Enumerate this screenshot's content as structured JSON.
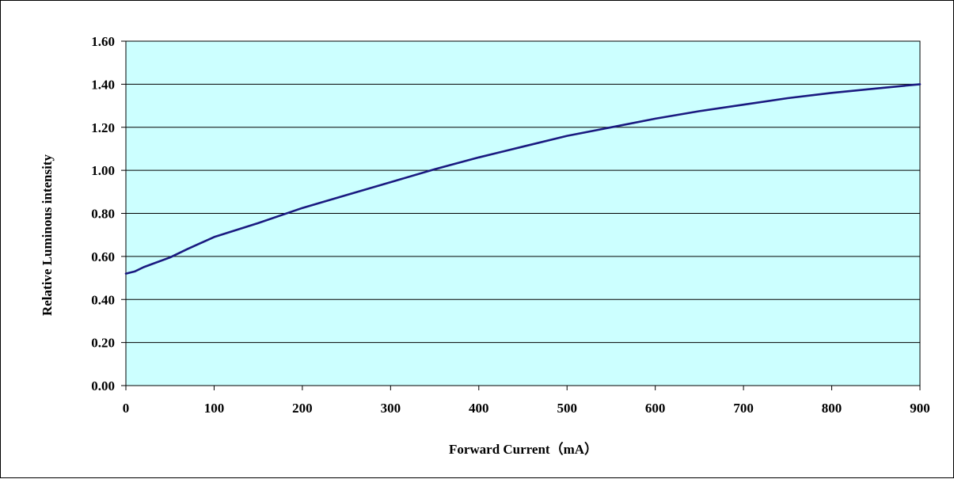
{
  "chart_data": {
    "type": "line",
    "title": "",
    "xlabel": "Forward Current（mA）",
    "ylabel": "Relative Luminous intensity",
    "xlim": [
      0,
      900
    ],
    "ylim": [
      0,
      1.6
    ],
    "x_ticks": [
      "0",
      "100",
      "200",
      "300",
      "400",
      "500",
      "600",
      "700",
      "800",
      "900"
    ],
    "y_ticks": [
      "0.00",
      "0.20",
      "0.40",
      "0.60",
      "0.80",
      "1.00",
      "1.20",
      "1.40",
      "1.60"
    ],
    "grid": "horizontal",
    "legend": "none",
    "plot_background": "#ccffff",
    "line_color": "#1a1a80",
    "series": [
      {
        "x": [
          0,
          10,
          20,
          30,
          50,
          70,
          100,
          150,
          200,
          250,
          300,
          350,
          400,
          450,
          500,
          550,
          600,
          650,
          700,
          750,
          800,
          850,
          900
        ],
        "values": [
          0.52,
          0.53,
          0.55,
          0.565,
          0.595,
          0.635,
          0.69,
          0.755,
          0.825,
          0.885,
          0.945,
          1.005,
          1.06,
          1.11,
          1.16,
          1.2,
          1.24,
          1.275,
          1.305,
          1.335,
          1.36,
          1.38,
          1.4
        ]
      }
    ]
  }
}
